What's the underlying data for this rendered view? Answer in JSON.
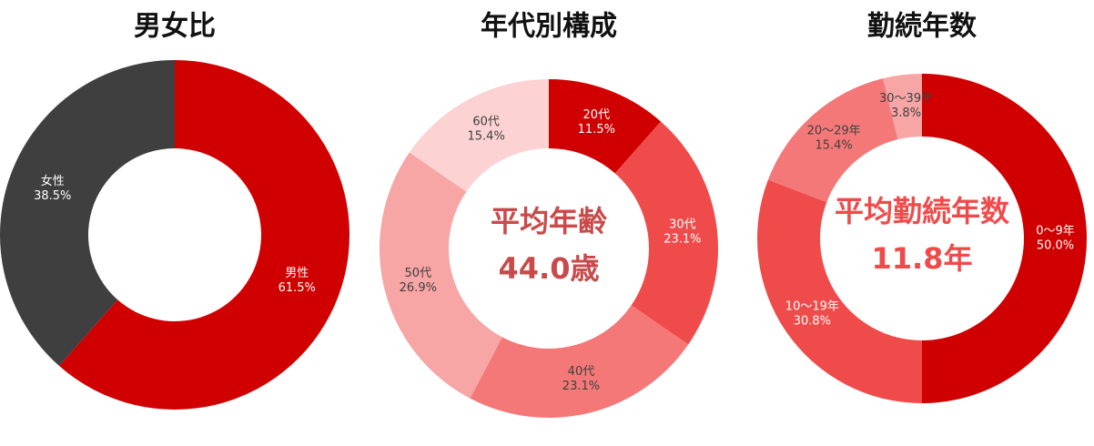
{
  "chart_data": [
    {
      "type": "pie",
      "title": "男女比",
      "categories": [
        "男性",
        "女性"
      ],
      "values": [
        61.5,
        38.5
      ],
      "value_labels": [
        "61.5%",
        "38.5%"
      ],
      "colors": [
        "#d00000",
        "#3f3f3f"
      ]
    },
    {
      "type": "pie",
      "title": "年代別構成",
      "categories": [
        "20代",
        "30代",
        "40代",
        "50代",
        "60代"
      ],
      "values": [
        11.5,
        23.1,
        23.1,
        26.9,
        15.4
      ],
      "value_labels": [
        "11.5%",
        "23.1%",
        "23.1%",
        "26.9%",
        "15.4%"
      ],
      "colors": [
        "#d00000",
        "#f04b4b",
        "#f47878",
        "#f7a5a5",
        "#fcd2d2"
      ],
      "center_label": "平均年齢",
      "center_value": "44.0歳",
      "center_color": "#c94a4a"
    },
    {
      "type": "pie",
      "title": "勤続年数",
      "categories": [
        "0〜9年",
        "10〜19年",
        "20〜29年",
        "30〜39年"
      ],
      "values": [
        50.0,
        30.8,
        15.4,
        3.8
      ],
      "value_labels": [
        "50.0%",
        "30.8%",
        "15.4%",
        "3.8%"
      ],
      "colors": [
        "#d00000",
        "#f04b4b",
        "#f47878",
        "#f7a5a5"
      ],
      "center_label": "平均勤続年数",
      "center_value": "11.8年",
      "center_color": "#f04b4b"
    }
  ]
}
